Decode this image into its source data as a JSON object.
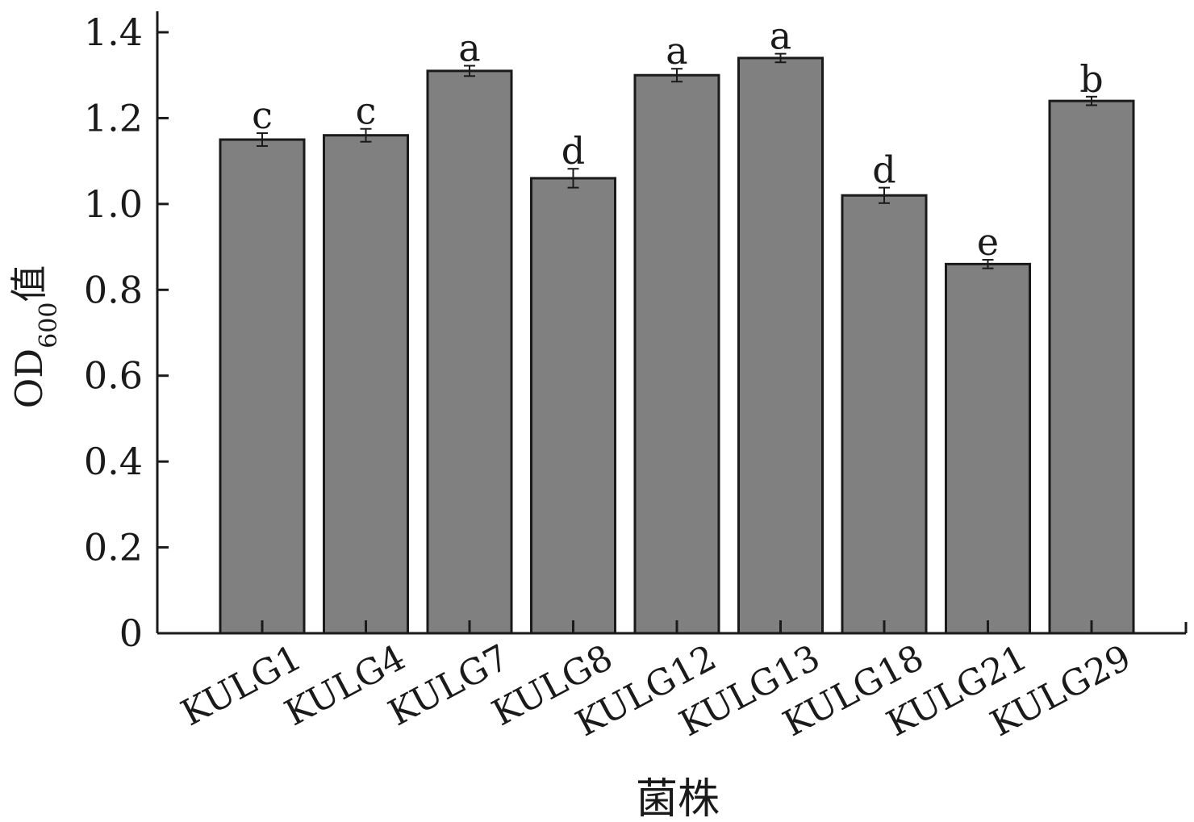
{
  "chart_data": {
    "type": "bar",
    "categories": [
      "KULG1",
      "KULG4",
      "KULG7",
      "KULG8",
      "KULG12",
      "KULG13",
      "KULG18",
      "KULG21",
      "KULG29"
    ],
    "values": [
      1.15,
      1.16,
      1.31,
      1.06,
      1.3,
      1.34,
      1.02,
      0.86,
      1.24
    ],
    "errors": [
      0.015,
      0.015,
      0.012,
      0.022,
      0.015,
      0.01,
      0.018,
      0.01,
      0.01
    ],
    "significance": [
      "c",
      "c",
      "a",
      "d",
      "a",
      "a",
      "d",
      "e",
      "b"
    ],
    "xlabel": "菌株",
    "ylabel": {
      "main": "OD",
      "subscript": "600",
      "suffix": "值"
    },
    "ylim": [
      0,
      1.4
    ],
    "yticks": [
      0,
      0.2,
      0.4,
      0.6,
      0.8,
      1.0,
      1.2,
      1.4
    ],
    "ytick_labels": [
      "0",
      "0.2",
      "0.4",
      "0.6",
      "0.8",
      "1.0",
      "1.2",
      "1.4"
    ],
    "grid": false,
    "bar_color": "#808080"
  }
}
